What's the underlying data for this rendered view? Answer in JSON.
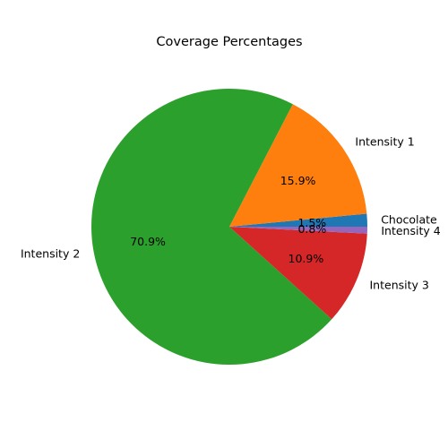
{
  "chart_data": {
    "type": "pie",
    "title": "Coverage Percentages",
    "categories": [
      "Chocolate",
      "Intensity 1",
      "Intensity 2",
      "Intensity 3",
      "Intensity 4"
    ],
    "values": [
      1.5,
      15.9,
      70.9,
      10.9,
      0.8
    ],
    "value_labels": [
      "1.5%",
      "15.9%",
      "70.9%",
      "10.9%",
      "0.8%"
    ],
    "colors": [
      "#1f77b4",
      "#ff7f0e",
      "#2ca02c",
      "#d62728",
      "#9467bd"
    ],
    "start_angle_deg": 0,
    "direction": "counterclockwise",
    "legend": "none"
  }
}
